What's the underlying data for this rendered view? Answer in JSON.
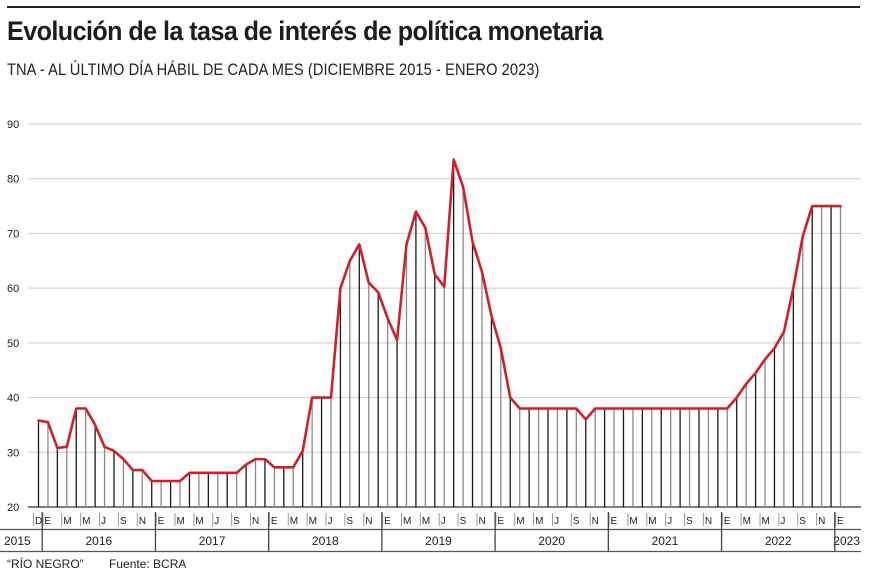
{
  "header": {
    "title": "Evolución de la tasa de interés de política monetaria",
    "subtitle": "TNA - AL ÚLTIMO DÍA HÁBIL DE CADA MES (DICIEMBRE 2015 - ENERO 2023)"
  },
  "footer": {
    "credit": "“RÍO NEGRO”",
    "source": "Fuente: BCRA"
  },
  "colors": {
    "line": "#d0202a",
    "bar_dark": "#1a1a1a",
    "bar_light": "#8a8a8a",
    "grid": "#d6d6d6",
    "text": "#222222"
  },
  "chart_data": {
    "type": "line",
    "title": "Evolución de la tasa de interés de política monetaria",
    "subtitle": "TNA - AL ÚLTIMO DÍA HÁBIL DE CADA MES (DICIEMBRE 2015 - ENERO 2023)",
    "xlabel": "",
    "ylabel": "",
    "ylim": [
      20,
      90
    ],
    "yticks": [
      20,
      30,
      40,
      50,
      60,
      70,
      80,
      90
    ],
    "grid": true,
    "legend": "none",
    "month_labels": [
      "D",
      "E",
      "",
      "M",
      "",
      "M",
      "",
      "J",
      "",
      "S",
      "",
      "N",
      "",
      "E",
      "",
      "M",
      "",
      "M",
      "",
      "J",
      "",
      "S",
      "",
      "N",
      "",
      "E",
      "",
      "M",
      "",
      "M",
      "",
      "J",
      "",
      "S",
      "",
      "N",
      "",
      "E",
      "",
      "M",
      "",
      "M",
      "",
      "J",
      "",
      "S",
      "",
      "N",
      "",
      "E",
      "",
      "M",
      "",
      "M",
      "",
      "J",
      "",
      "S",
      "",
      "N",
      "",
      "E",
      "",
      "M",
      "",
      "M",
      "",
      "J",
      "",
      "S",
      "",
      "N",
      "",
      "E",
      "",
      "M",
      "",
      "M",
      "",
      "J",
      "",
      "S",
      "",
      "N",
      "",
      "E"
    ],
    "years": [
      {
        "label": "2015",
        "start": 0,
        "end": 0
      },
      {
        "label": "2016",
        "start": 1,
        "end": 12
      },
      {
        "label": "2017",
        "start": 13,
        "end": 24
      },
      {
        "label": "2018",
        "start": 25,
        "end": 36
      },
      {
        "label": "2019",
        "start": 37,
        "end": 48
      },
      {
        "label": "2020",
        "start": 49,
        "end": 60
      },
      {
        "label": "2021",
        "start": 61,
        "end": 72
      },
      {
        "label": "2022",
        "start": 73,
        "end": 84
      },
      {
        "label": "2023",
        "start": 85,
        "end": 85
      }
    ],
    "series": [
      {
        "name": "TNA",
        "values": [
          35.8,
          35.5,
          30.8,
          31,
          38,
          38,
          35,
          31,
          30.25,
          28.75,
          26.75,
          26.75,
          24.75,
          24.75,
          24.75,
          24.75,
          26.25,
          26.25,
          26.25,
          26.25,
          26.25,
          26.25,
          27.75,
          28.75,
          28.75,
          27.25,
          27.25,
          27.25,
          30.25,
          40,
          40,
          40,
          60,
          65,
          68,
          61,
          59.25,
          54.5,
          50.5,
          68,
          74,
          71,
          62.5,
          60.25,
          83.5,
          78.5,
          68.5,
          63,
          55,
          49,
          40,
          38,
          38,
          38,
          38,
          38,
          38,
          38,
          36,
          38,
          38,
          38,
          38,
          38,
          38,
          38,
          38,
          38,
          38,
          38,
          38,
          38,
          38,
          38,
          40,
          42.5,
          44.5,
          47,
          49,
          52,
          60,
          69.5,
          75,
          75,
          75,
          75
        ]
      }
    ]
  }
}
